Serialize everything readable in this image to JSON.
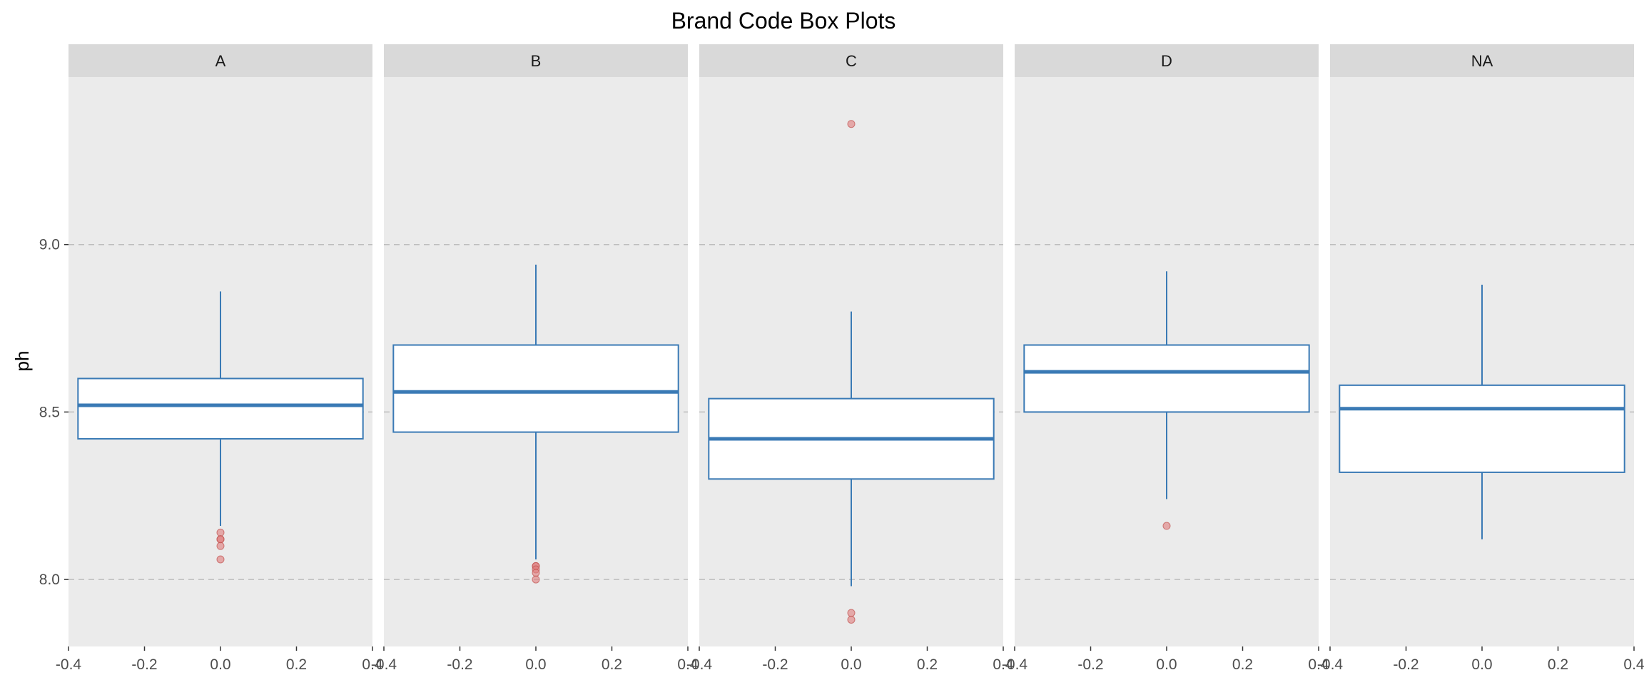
{
  "chart_data": {
    "type": "box",
    "title": "Brand Code Box Plots",
    "xlabel": "",
    "ylabel": "ph",
    "ylim": [
      7.8,
      9.5
    ],
    "y_ticks": [
      8.0,
      8.5,
      9.0
    ],
    "y_tick_labels": [
      "8.0",
      "8.5",
      "9.0"
    ],
    "xlim": [
      -0.4,
      0.4
    ],
    "x_ticks": [
      -0.4,
      -0.2,
      0.0,
      0.2,
      0.4
    ],
    "x_tick_labels": [
      "-0.4",
      "-0.2",
      "0.0",
      "0.2",
      "0.4"
    ],
    "grid": "horizontal dashed at major y ticks",
    "box_color": "#3a7ab5",
    "box_fill": "#ffffff",
    "outlier_color": "#e07b7b",
    "panel_bg": "#ebebeb",
    "strip_bg": "#d9d9d9",
    "panels": [
      {
        "label": "A",
        "q1": 8.42,
        "median": 8.52,
        "q3": 8.6,
        "whisker_low": 8.16,
        "whisker_high": 8.86,
        "outliers": [
          8.14,
          8.12,
          8.12,
          8.1,
          8.06
        ]
      },
      {
        "label": "B",
        "q1": 8.44,
        "median": 8.56,
        "q3": 8.7,
        "whisker_low": 8.06,
        "whisker_high": 8.94,
        "outliers": [
          8.04,
          8.04,
          8.03,
          8.02,
          8.0
        ]
      },
      {
        "label": "C",
        "q1": 8.3,
        "median": 8.42,
        "q3": 8.54,
        "whisker_low": 7.98,
        "whisker_high": 8.8,
        "outliers": [
          9.36,
          7.9,
          7.88
        ]
      },
      {
        "label": "D",
        "q1": 8.5,
        "median": 8.62,
        "q3": 8.7,
        "whisker_low": 8.24,
        "whisker_high": 8.92,
        "outliers": [
          8.16
        ]
      },
      {
        "label": "NA",
        "q1": 8.32,
        "median": 8.51,
        "q3": 8.58,
        "whisker_low": 8.12,
        "whisker_high": 8.88,
        "outliers": []
      }
    ]
  }
}
